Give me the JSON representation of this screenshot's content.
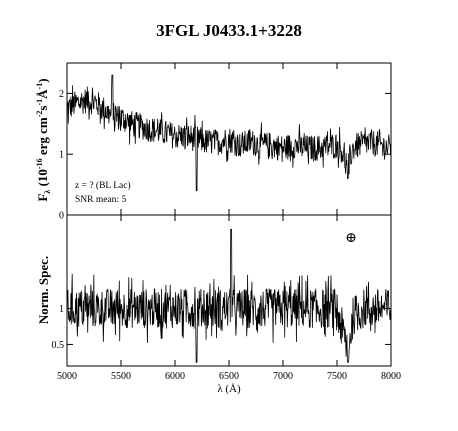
{
  "figure": {
    "title": "3FGL J0433.1+3228",
    "xlabel": "λ (Å)",
    "top_ylabel": "F_λ (10^-16 erg cm^-2 s^-1 Å^-1)",
    "bottom_ylabel": "Norm. Spec.",
    "annotation_line1": "z = ? (BL Lac)",
    "annotation_line2": "SNR mean: 5",
    "telluric_symbol": "⊕"
  },
  "chart_data": [
    {
      "type": "line",
      "panel": "top",
      "title": "3FGL J0433.1+3228",
      "xlabel": "",
      "ylabel": "F_λ (10^-16 erg cm^-2 s^-1 Å^-1)",
      "xlim": [
        5000,
        8000
      ],
      "ylim": [
        0,
        2.5
      ],
      "yticks": [
        0,
        1,
        2
      ],
      "ytick_labels": [
        "0",
        "1",
        "2"
      ],
      "grid": false,
      "annotations": [
        "z = ? (BL Lac)",
        "SNR mean: 5"
      ],
      "series": [
        {
          "x": [
            5000,
            5100,
            5200,
            5300,
            5400,
            5500,
            5600,
            5700,
            5800,
            5900,
            6000,
            6100,
            6200,
            6300,
            6400,
            6500,
            6600,
            6700,
            6800,
            6900,
            7000,
            7100,
            7200,
            7300,
            7400,
            7500,
            7550,
            7600,
            7620,
            7650,
            7700,
            7800,
            7900,
            8000
          ],
          "y": [
            1.75,
            1.85,
            1.9,
            1.8,
            1.65,
            1.6,
            1.5,
            1.45,
            1.4,
            1.35,
            1.3,
            1.3,
            1.25,
            1.2,
            1.2,
            1.25,
            1.15,
            1.2,
            1.15,
            1.15,
            1.1,
            1.15,
            1.1,
            1.1,
            1.12,
            1.15,
            1.05,
            0.7,
            0.95,
            1.1,
            1.15,
            1.2,
            1.15,
            1.1
          ]
        }
      ],
      "features": [
        {
          "x": 6200,
          "y": 0.4,
          "kind": "dip"
        },
        {
          "x": 5420,
          "y": 2.3,
          "kind": "spike"
        },
        {
          "x": 7600,
          "y": 0.6,
          "kind": "telluric absorption"
        }
      ]
    },
    {
      "type": "line",
      "panel": "bottom",
      "xlabel": "λ (Å)",
      "ylabel": "Norm. Spec.",
      "xlim": [
        5000,
        8000
      ],
      "ylim": [
        0.2,
        2.3
      ],
      "xticks": [
        5000,
        5500,
        6000,
        6500,
        7000,
        7500,
        8000
      ],
      "xtick_labels": [
        "5000",
        "5500",
        "6000",
        "6500",
        "7000",
        "7500",
        "8000"
      ],
      "yticks": [
        0.5,
        1
      ],
      "ytick_labels": [
        "0.5",
        "1"
      ],
      "grid": false,
      "series": [
        {
          "x": [
            5000,
            5250,
            5500,
            5750,
            6000,
            6250,
            6500,
            6750,
            7000,
            7250,
            7500,
            7600,
            7650,
            7750,
            8000
          ],
          "y": [
            1.0,
            1.0,
            1.0,
            1.0,
            1.0,
            1.0,
            1.0,
            1.0,
            1.0,
            1.0,
            1.0,
            0.4,
            0.9,
            1.0,
            1.0
          ]
        }
      ],
      "features": [
        {
          "x": 6200,
          "y": 0.25,
          "kind": "dip"
        },
        {
          "x": 6520,
          "y": 2.1,
          "kind": "spike"
        },
        {
          "x": 7600,
          "y": 0.25,
          "kind": "telluric absorption"
        }
      ],
      "annotations": [
        "⊕"
      ]
    }
  ]
}
